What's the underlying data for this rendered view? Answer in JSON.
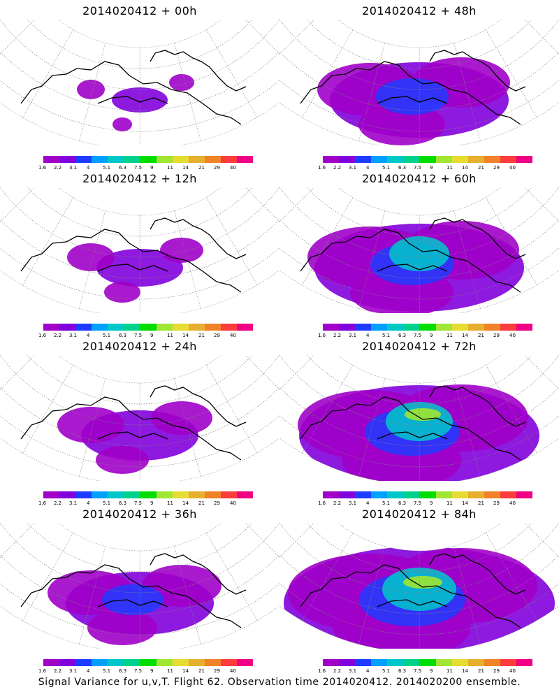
{
  "panels": [
    {
      "title": "2014020412 + 00h",
      "intensity": 0
    },
    {
      "title": "2014020412 + 48h",
      "intensity": 4
    },
    {
      "title": "2014020412 + 12h",
      "intensity": 1
    },
    {
      "title": "2014020412 + 60h",
      "intensity": 5
    },
    {
      "title": "2014020412 + 24h",
      "intensity": 2
    },
    {
      "title": "2014020412 + 72h",
      "intensity": 6
    },
    {
      "title": "2014020412 + 36h",
      "intensity": 3
    },
    {
      "title": "2014020412 + 84h",
      "intensity": 7
    }
  ],
  "colorbar": {
    "colors": [
      "#a000c8",
      "#8200dc",
      "#1e3cff",
      "#00a0ff",
      "#00c8c8",
      "#00d28c",
      "#00dc00",
      "#a0e632",
      "#e6dc32",
      "#e6af2d",
      "#f08228",
      "#fa3c3c",
      "#f00082"
    ],
    "labels": [
      "1.6",
      "2.2",
      "3.1",
      "4",
      "5.1",
      "6.3",
      "7.5",
      "9",
      "11",
      "14",
      "21",
      "29",
      "40"
    ]
  },
  "caption": "Signal Variance for u,v,T. Flight 62. Observation time 2014020412. 2014020200 ensemble."
}
